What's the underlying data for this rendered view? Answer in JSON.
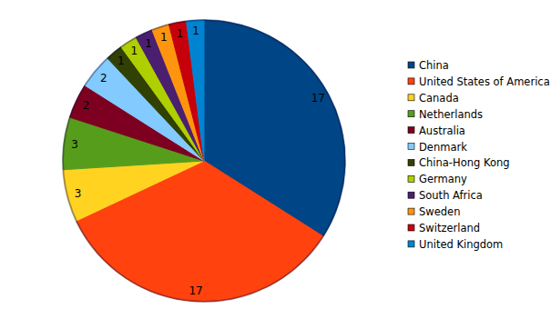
{
  "chart_data": {
    "type": "pie",
    "categories": [
      "China",
      "United States of America",
      "Canada",
      "Netherlands",
      "Australia",
      "Denmark",
      "China-Hong Kong",
      "Germany",
      "South Africa",
      "Sweden",
      "Switzerland",
      "United Kingdom"
    ],
    "values": [
      17,
      17,
      3,
      3,
      2,
      2,
      1,
      1,
      1,
      1,
      1,
      1
    ],
    "colors": [
      "#004586",
      "#ff420e",
      "#ffd320",
      "#579d1c",
      "#7e0021",
      "#83caff",
      "#314004",
      "#aecf00",
      "#4b1f6f",
      "#ff950e",
      "#c5000b",
      "#0084d1"
    ],
    "data_labels": true,
    "legend": "right"
  }
}
